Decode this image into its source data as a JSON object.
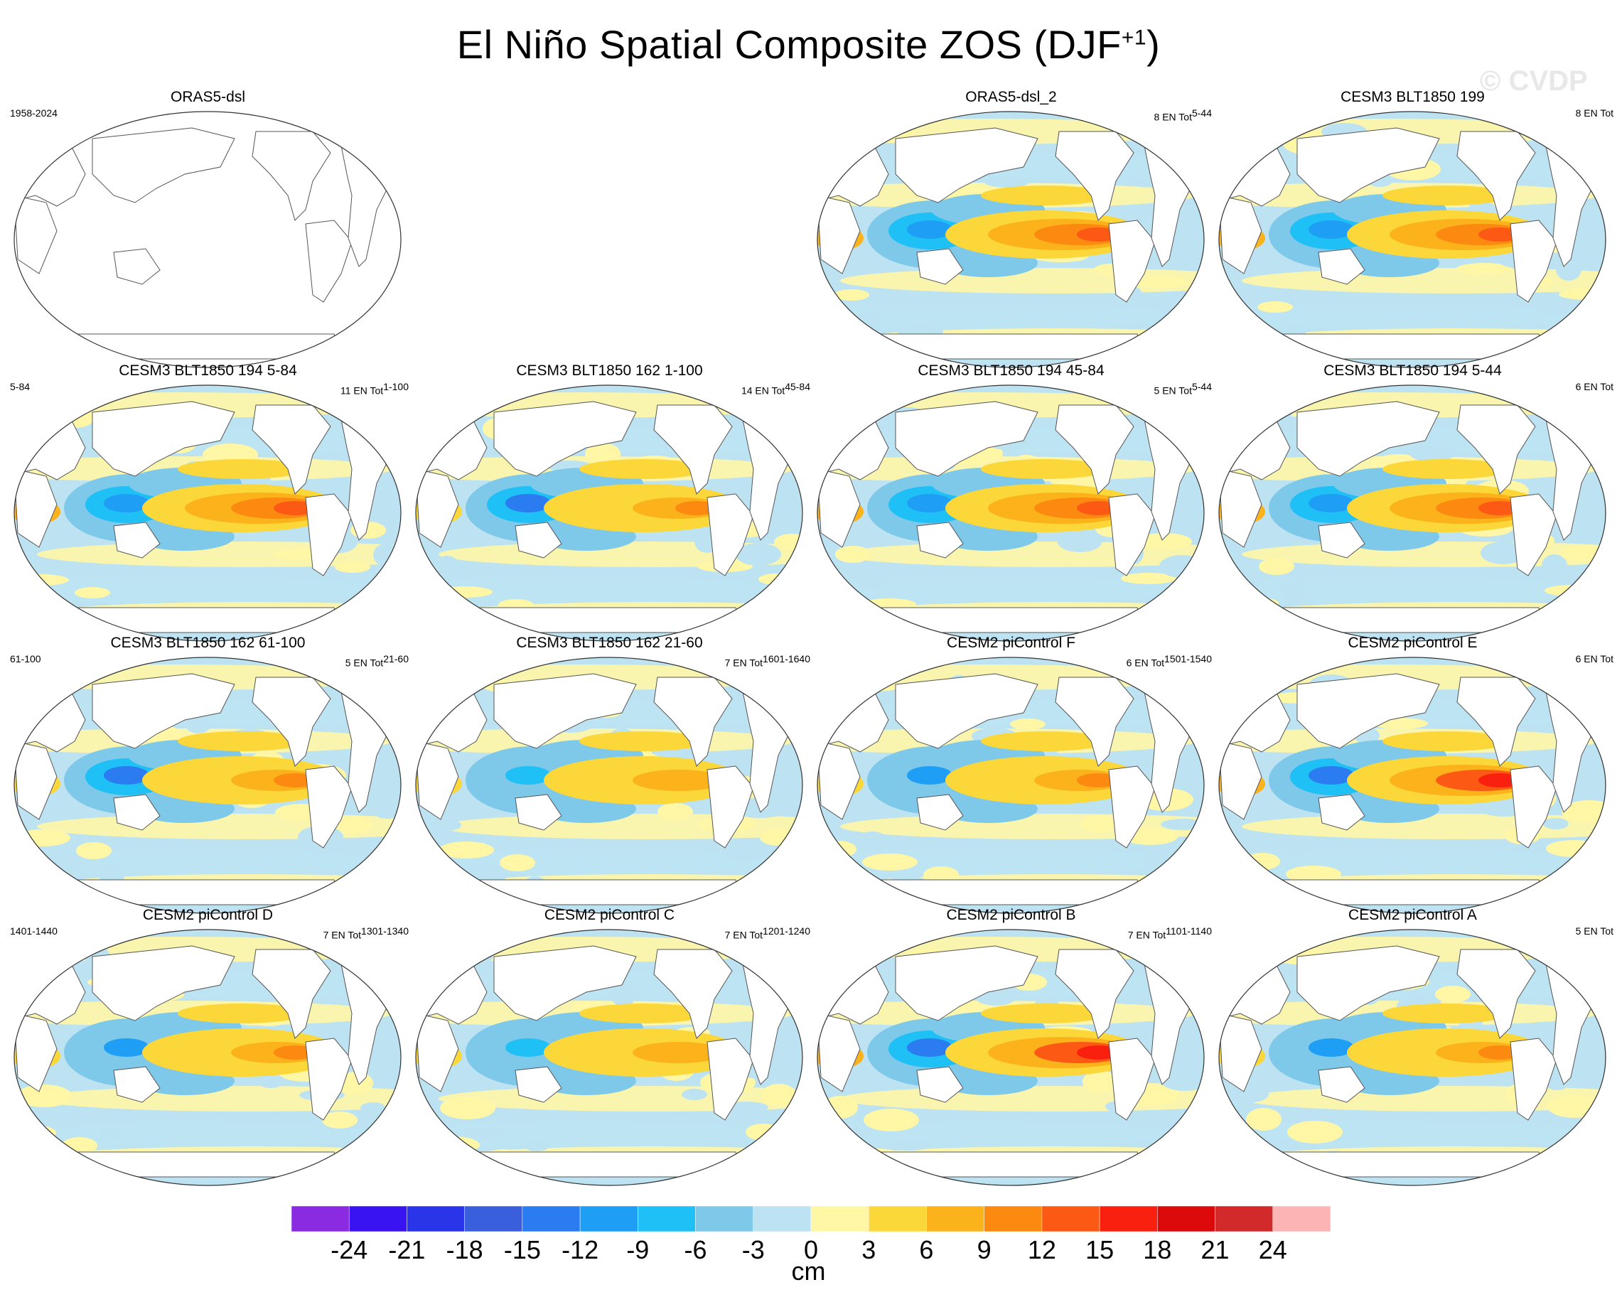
{
  "title": {
    "text": "El Niño Spatial Composite ZOS (DJF",
    "sup": "+1",
    "close": ")"
  },
  "copyright": "© CVDP",
  "panels": [
    {
      "title": "ORAS5-dsl",
      "left": "1958-2024",
      "right": "",
      "right_sup": "",
      "style": "blank"
    },
    {
      "title": "ORAS5-dsl_2",
      "left": "",
      "right": "8 EN Tot",
      "right_sup": "5-44",
      "style": "obs"
    },
    {
      "title": "CESM3 BLT1850 199",
      "left": "",
      "right": "8 EN Tot",
      "right_sup": "",
      "style": "a"
    },
    {
      "title": "CESM3 BLT1850 194 5-84",
      "left": "5-84",
      "right": "11 EN Tot",
      "right_sup": "1-100",
      "style": "a"
    },
    {
      "title": "CESM3 BLT1850 162 1-100",
      "left": "",
      "right": "14 EN Tot",
      "right_sup": "45-84",
      "style": "b"
    },
    {
      "title": "CESM3 BLT1850 194 45-84",
      "left": "",
      "right": "5 EN Tot",
      "right_sup": "5-44",
      "style": "obs"
    },
    {
      "title": "CESM3 BLT1850 194 5-44",
      "left": "",
      "right": "6 EN Tot",
      "right_sup": "",
      "style": "a"
    },
    {
      "title": "CESM3 BLT1850 162 61-100",
      "left": "61-100",
      "right": "5 EN Tot",
      "right_sup": "21-60",
      "style": "b"
    },
    {
      "title": "CESM3 BLT1850 162 21-60",
      "left": "",
      "right": "7 EN Tot",
      "right_sup": "1601-1640",
      "style": "c"
    },
    {
      "title": "CESM2 piControl F",
      "left": "",
      "right": "6 EN Tot",
      "right_sup": "1501-1540",
      "style": "d"
    },
    {
      "title": "CESM2 piControl E",
      "left": "",
      "right": "6 EN Tot",
      "right_sup": "",
      "style": "e"
    },
    {
      "title": "CESM2 piControl D",
      "left": "1401-1440",
      "right": "7 EN Tot",
      "right_sup": "1301-1340",
      "style": "d"
    },
    {
      "title": "CESM2 piControl C",
      "left": "",
      "right": "7 EN Tot",
      "right_sup": "1201-1240",
      "style": "c"
    },
    {
      "title": "CESM2 piControl B",
      "left": "",
      "right": "7 EN Tot",
      "right_sup": "1101-1140",
      "style": "e"
    },
    {
      "title": "CESM2 piControl A",
      "left": "",
      "right": "5 EN Tot",
      "right_sup": "",
      "style": "d"
    }
  ],
  "colorbar": {
    "colors": [
      "#8a2be2",
      "#3a14f0",
      "#2a35ea",
      "#3a5fdc",
      "#2a7cf0",
      "#1e9ef4",
      "#1ec0f6",
      "#7ec8ea",
      "#bde3f2",
      "#fff6a6",
      "#fcd73a",
      "#fcb21a",
      "#fc8a10",
      "#fc5a14",
      "#fa2010",
      "#dc0a0a",
      "#d22a2a",
      "#fcb4b4"
    ],
    "labels": [
      "-24",
      "-21",
      "-18",
      "-15",
      "-12",
      "-9",
      "-6",
      "-3",
      "0",
      "3",
      "6",
      "9",
      "12",
      "15",
      "18",
      "21",
      "24"
    ],
    "unit": "cm"
  }
}
